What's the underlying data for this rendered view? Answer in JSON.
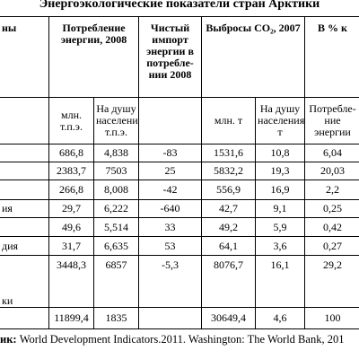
{
  "title": "Энергоэкологические показатели стран Арктики",
  "table": {
    "header": [
      "ны",
      "Потребление энергии, 2008",
      "Чистый импорт энергии в потребле-нии 2008",
      "Выбросы CO₂, 2007",
      "В % к"
    ],
    "subheader": [
      "млн. т.п.э.",
      "На душу населения, т.п.э.",
      "млн. т",
      "На душу населения, т",
      "Потребле-ние энергии"
    ],
    "rows": [
      [
        null,
        "686,8",
        "4,838",
        "-83",
        "1531,6",
        "10,8",
        "6,04"
      ],
      [
        null,
        "2383,7",
        "7503",
        "25",
        "5832,2",
        "19,3",
        "20,03"
      ],
      [
        null,
        "266,8",
        "8,008",
        "-42",
        "556,9",
        "16,9",
        "2,2"
      ],
      [
        "ия",
        "29,7",
        "6,222",
        "-640",
        "42,7",
        "9,1",
        "0,25"
      ],
      [
        null,
        "49,6",
        "5,514",
        "33",
        "49,2",
        "5,9",
        "0,42"
      ],
      [
        "дия",
        "31,7",
        "6,635",
        "53",
        "64,1",
        "3,6",
        "0,27"
      ],
      [
        "ки",
        "3448,3",
        "6857",
        "-5,3",
        "8076,7",
        "16,1",
        "29,2"
      ],
      [
        null,
        "11899,4",
        "1835",
        null,
        "30649,4",
        "4,6",
        "100"
      ]
    ]
  },
  "footer": {
    "label": "ик:",
    "text": "World Development Indicators.2011. Washington: The World Bank, 201"
  }
}
